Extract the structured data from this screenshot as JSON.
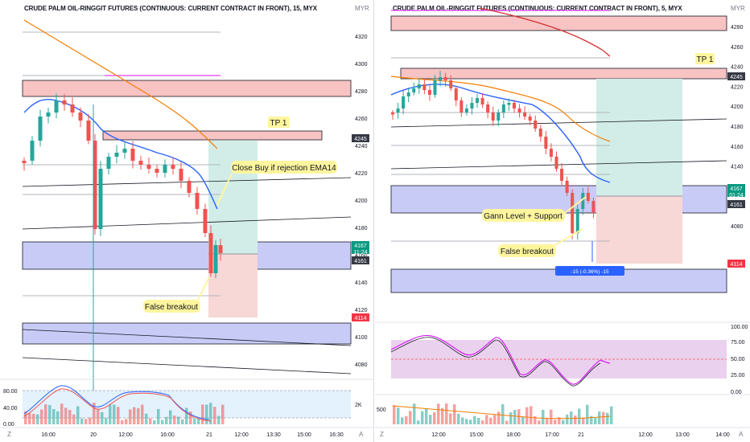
{
  "left": {
    "title": "CRUDE PALM OIL-RINGGIT FUTURES (CONTINUOUS: CURRENT CONTRACT IN FRONT), 15, MYX",
    "currency": "MYR",
    "price_ticks": [
      "4320",
      "4300",
      "4280",
      "4260",
      "4240",
      "4220",
      "4200",
      "4180",
      "4160",
      "4140",
      "4120",
      "4100",
      "4080"
    ],
    "time_ticks": [
      "16:00",
      "20",
      "12:00",
      "16:00",
      "21",
      "12:00",
      "13:30",
      "15:00",
      "16:30"
    ],
    "tags": {
      "tp_level": "4245",
      "last_price": "4167",
      "countdown": "11:24",
      "open_price": "4161",
      "stop_level": "4114"
    },
    "annotations": {
      "tp": "TP 1",
      "close_note": "Close Buy if rejection EMA14",
      "false_breakout": "False breakout"
    },
    "osc_ticks": [
      "80.00",
      "40.00",
      "0.00"
    ],
    "vol_tick": "2K",
    "corner_left": "Z",
    "corner_right": "A"
  },
  "right": {
    "title": "CRUDE PALM OIL-RINGGIT FUTURES (CONTINUOUS: CURRENT CONTRACT IN FRONT), 5, MYX",
    "currency": "MYR",
    "price_ticks": [
      "4280",
      "4260",
      "4240",
      "4220",
      "4200",
      "4180",
      "4160",
      "4140",
      "4120",
      "4100",
      "4080"
    ],
    "time_ticks": [
      "12:00",
      "15:00",
      "18:00",
      "17:00",
      "21",
      "12:00",
      "13:00",
      "14:00"
    ],
    "tags": {
      "tp_level": "4245",
      "last_price": "4167",
      "countdown": "01:24",
      "open_price": "4161",
      "stop_level": "4114"
    },
    "annotations": {
      "tp": "TP 1",
      "gann": "Gann Level + Support",
      "false_breakout": "False breakout",
      "measure": "-15 (-0.36%) -15"
    },
    "osc_ticks": [
      "100.00",
      "75.00",
      "50.00",
      "25.00",
      "0.00"
    ],
    "vol_tick": "500",
    "corner_left": "Z",
    "corner_right": "A"
  },
  "colors": {
    "up": "#26a69a",
    "down": "#ef5350",
    "ema_fast": "#2962ff",
    "ema_slow": "#f57c00",
    "resistance_zone": "#f7c3c3",
    "support_zone": "#c9cbf7",
    "tp_zone": "#d2ede8",
    "sl_zone": "#f8d7d7",
    "callout": "#fff59d",
    "tag_red": "#f23645",
    "tag_green": "#089981",
    "tag_gray": "#363a45"
  }
}
